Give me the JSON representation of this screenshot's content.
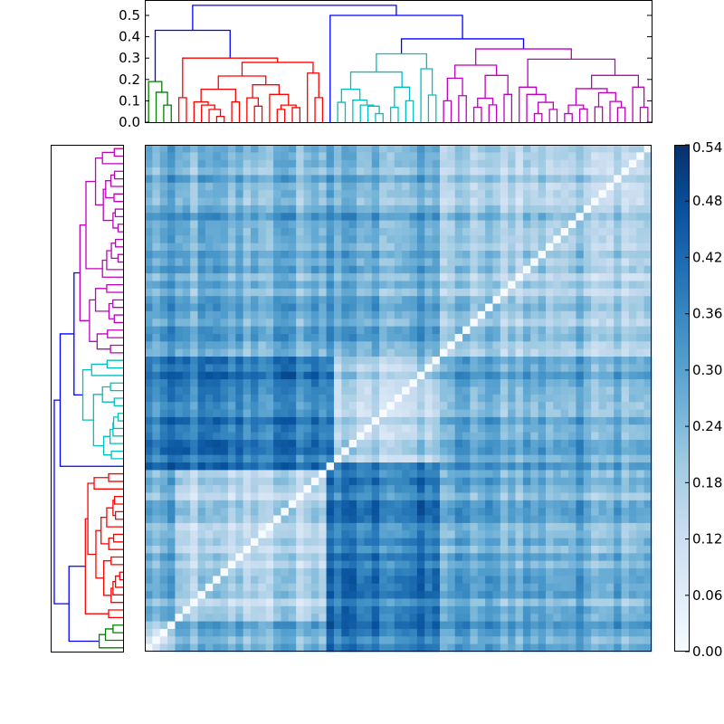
{
  "chart_data": {
    "type": "heatmap",
    "title": "",
    "colormap": [
      "#f7fbff",
      "#deebf7",
      "#c6dbef",
      "#9ecae1",
      "#6baed6",
      "#4292c6",
      "#2171b5",
      "#08519c",
      "#08306b"
    ],
    "vmin": 0.0,
    "vmax": 0.54,
    "origin": "lower",
    "colorbar": {
      "position": "right",
      "ticks": [
        0.0,
        0.06,
        0.12,
        0.18,
        0.24,
        0.3,
        0.36,
        0.42,
        0.48,
        0.54
      ],
      "tick_labels": [
        "0.00",
        "0.06",
        "0.12",
        "0.18",
        "0.24",
        "0.30",
        "0.36",
        "0.42",
        "0.48",
        "0.54"
      ]
    },
    "top_dendrogram": {
      "ylim": [
        0,
        0.568
      ],
      "ticks": [
        0.0,
        0.1,
        0.2,
        0.3,
        0.4,
        0.5
      ],
      "tick_labels": [
        "0.0",
        "0.1",
        "0.2",
        "0.3",
        "0.4",
        "0.5"
      ]
    },
    "left_dendrogram": {
      "ticks": "none"
    },
    "link_color_default": "#0000ff",
    "tree": {
      "h": 0.547,
      "c": [
        {
          "h": 0.43,
          "c": [
            {
              "h": 0.19,
              "color": "#008000",
              "group": "green",
              "c": [
                0,
                {
                  "h": 0.14,
                  "c": [
                    0,
                    {
                      "h": 0.08,
                      "c": [
                        0,
                        0
                      ]
                    }
                  ]
                }
              ]
            },
            {
              "h": 0.3,
              "color": "#ff0000",
              "group": "red",
              "c": [
                {
                  "h": 0.115,
                  "c": [
                    0,
                    0
                  ]
                },
                {
                  "h": 0.28,
                  "c": [
                    {
                      "h": 0.216,
                      "c": [
                        {
                          "h": 0.154,
                          "c": [
                            {
                              "h": 0.095,
                              "c": [
                                0,
                                {
                                  "h": 0.08,
                                  "c": [
                                    0,
                                    {
                                      "h": 0.06,
                                      "c": [
                                        0,
                                        {
                                          "h": 0.027,
                                          "c": [
                                            0,
                                            0
                                          ]
                                        }
                                      ]
                                    }
                                  ]
                                }
                              ]
                            },
                            {
                              "h": 0.095,
                              "c": [
                                0,
                                0
                              ]
                            }
                          ]
                        },
                        {
                          "h": 0.175,
                          "c": [
                            {
                              "h": 0.114,
                              "c": [
                                0,
                                {
                                  "h": 0.075,
                                  "c": [
                                    0,
                                    0
                                  ]
                                }
                              ]
                            },
                            {
                              "h": 0.13,
                              "c": [
                                0,
                                {
                                  "h": 0.08,
                                  "c": [
                                    {
                                      "h": 0.06,
                                      "c": [
                                        0,
                                        0
                                      ]
                                    },
                                    {
                                      "h": 0.068,
                                      "c": [
                                        0,
                                        0
                                      ]
                                    }
                                  ]
                                }
                              ]
                            }
                          ]
                        }
                      ]
                    },
                    {
                      "h": 0.23,
                      "c": [
                        0,
                        {
                          "h": 0.115,
                          "c": [
                            0,
                            0
                          ]
                        }
                      ]
                    }
                  ]
                }
              ]
            }
          ]
        },
        {
          "h": 0.5,
          "c": [
            0,
            {
              "h": 0.39,
              "c": [
                {
                  "h": 0.32,
                  "color": "#00bfbf",
                  "group": "cyan",
                  "c": [
                    {
                      "h": 0.235,
                      "c": [
                        {
                          "h": 0.154,
                          "c": [
                            {
                              "h": 0.093,
                              "c": [
                                0,
                                0
                              ]
                            },
                            {
                              "h": 0.103,
                              "c": [
                                0,
                                {
                                  "h": 0.08,
                                  "c": [
                                    0,
                                    {
                                      "h": 0.075,
                                      "c": [
                                        0,
                                        {
                                          "h": 0.04,
                                          "c": [
                                            0,
                                            0
                                          ]
                                        }
                                      ]
                                    }
                                  ]
                                }
                              ]
                            }
                          ]
                        },
                        {
                          "h": 0.164,
                          "c": [
                            {
                              "h": 0.07,
                              "c": [
                                0,
                                0
                              ]
                            },
                            {
                              "h": 0.1,
                              "c": [
                                0,
                                0
                              ]
                            }
                          ]
                        }
                      ]
                    },
                    {
                      "h": 0.25,
                      "c": [
                        0,
                        {
                          "h": 0.127,
                          "c": [
                            0,
                            0
                          ]
                        }
                      ]
                    }
                  ]
                },
                {
                  "h": 0.343,
                  "color": "#bf00bf",
                  "group": "magenta",
                  "c": [
                    {
                      "h": 0.267,
                      "c": [
                        {
                          "h": 0.206,
                          "c": [
                            {
                              "h": 0.1,
                              "c": [
                                0,
                                0
                              ]
                            },
                            {
                              "h": 0.124,
                              "c": [
                                0,
                                0
                              ]
                            }
                          ]
                        },
                        {
                          "h": 0.219,
                          "c": [
                            {
                              "h": 0.112,
                              "c": [
                                {
                                  "h": 0.07,
                                  "c": [
                                    0,
                                    0
                                  ]
                                },
                                {
                                  "h": 0.081,
                                  "c": [
                                    0,
                                    0
                                  ]
                                }
                              ]
                            },
                            {
                              "h": 0.13,
                              "c": [
                                0,
                                0
                              ]
                            }
                          ]
                        }
                      ]
                    },
                    {
                      "h": 0.295,
                      "c": [
                        {
                          "h": 0.164,
                          "c": [
                            0,
                            {
                              "h": 0.13,
                              "c": [
                                0,
                                {
                                  "h": 0.093,
                                  "c": [
                                    {
                                      "h": 0.04,
                                      "c": [
                                        0,
                                        0
                                      ]
                                    },
                                    {
                                      "h": 0.06,
                                      "c": [
                                        0,
                                        0
                                      ]
                                    }
                                  ]
                                }
                              ]
                            }
                          ]
                        },
                        {
                          "h": 0.219,
                          "c": [
                            {
                              "h": 0.157,
                              "c": [
                                {
                                  "h": 0.08,
                                  "c": [
                                    {
                                      "h": 0.04,
                                      "c": [
                                        0,
                                        0
                                      ]
                                    },
                                    {
                                      "h": 0.062,
                                      "c": [
                                        0,
                                        0
                                      ]
                                    }
                                  ]
                                },
                                {
                                  "h": 0.138,
                                  "c": [
                                    {
                                      "h": 0.072,
                                      "c": [
                                        0,
                                        0
                                      ]
                                    },
                                    {
                                      "h": 0.097,
                                      "c": [
                                        0,
                                        {
                                          "h": 0.068,
                                          "c": [
                                            0,
                                            0
                                          ]
                                        }
                                      ]
                                    }
                                  ]
                                }
                              ]
                            },
                            {
                              "h": 0.164,
                              "c": [
                                0,
                                {
                                  "h": 0.07,
                                  "c": [
                                    0,
                                    0
                                  ]
                                }
                              ]
                            }
                          ]
                        }
                      ]
                    }
                  ]
                }
              ]
            }
          ]
        }
      ]
    },
    "groups": [
      "green",
      "red",
      "single",
      "cyan",
      "magenta"
    ],
    "block_means": [
      [
        0.12,
        0.25,
        0.45,
        0.36,
        0.28
      ],
      [
        0.25,
        0.16,
        0.45,
        0.37,
        0.27
      ],
      [
        0.45,
        0.45,
        0.0,
        0.4,
        0.36
      ],
      [
        0.36,
        0.37,
        0.4,
        0.15,
        0.27
      ],
      [
        0.28,
        0.27,
        0.36,
        0.27,
        0.2
      ]
    ],
    "diagonal": 0.0
  }
}
